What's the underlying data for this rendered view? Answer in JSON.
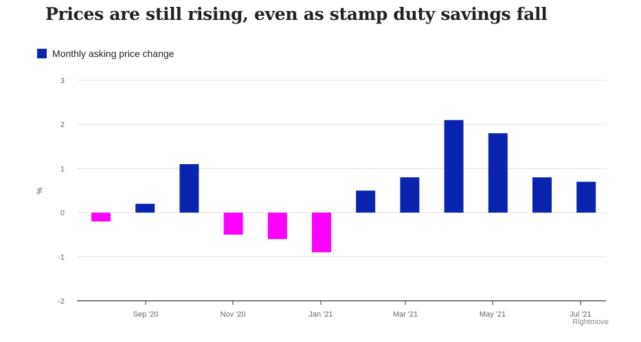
{
  "chart_data": {
    "type": "bar",
    "title": "Prices are still rising, even as stamp duty savings fall",
    "ylabel": "%",
    "ylim": [
      -2,
      3
    ],
    "yticks": [
      3,
      2,
      1,
      0,
      -1,
      -2
    ],
    "x_tick_labels": [
      "Sep '20",
      "Nov '20",
      "Jan '21",
      "Mar '21",
      "May '21",
      "Jul '21"
    ],
    "months": [
      "2020-08",
      "2020-09",
      "2020-10",
      "2020-11",
      "2020-12",
      "2021-01",
      "2021-02",
      "2021-03",
      "2021-04",
      "2021-05",
      "2021-06",
      "2021-07"
    ],
    "series": [
      {
        "name": "Monthly asking price change",
        "values": [
          -0.2,
          0.2,
          1.1,
          -0.5,
          -0.6,
          -0.9,
          0.5,
          0.8,
          2.1,
          1.8,
          0.8,
          0.7
        ]
      }
    ],
    "colors": {
      "positive": "#0a24b0",
      "negative": "#ff00ff"
    },
    "grid": true,
    "legend_position": "top-left",
    "source": "Rightmove"
  }
}
